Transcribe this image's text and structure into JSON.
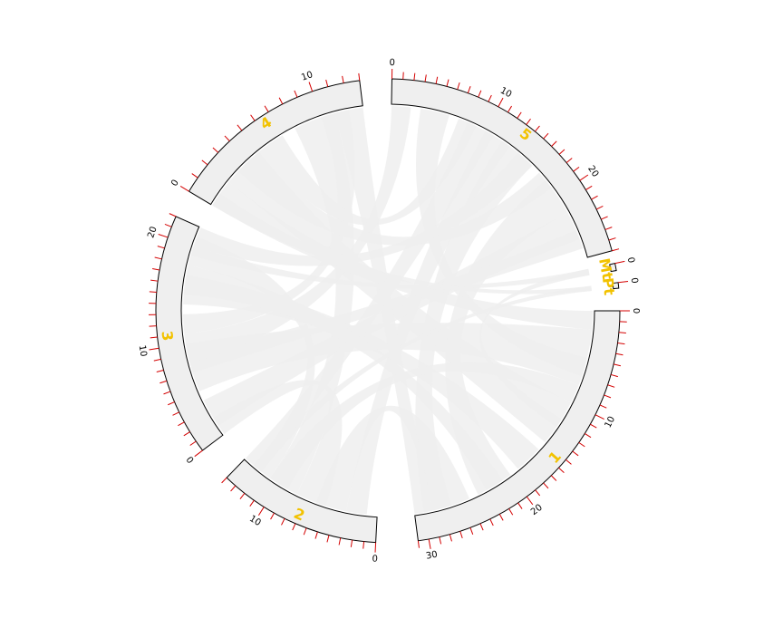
{
  "diagram": {
    "type": "chord",
    "colors": {
      "segment_fill": "#efefef",
      "segment_stroke": "#000000",
      "link_fill": "#eeeeee",
      "tick_major": "#d40000",
      "tick_minor": "#d40000",
      "label": "#f2c200"
    },
    "segments": [
      {
        "id": "1",
        "label": "1",
        "length": 31,
        "tick_labels": [
          "0",
          "10",
          "20",
          "30"
        ]
      },
      {
        "id": "2",
        "label": "2",
        "length": 14,
        "tick_labels": [
          "0",
          "10"
        ]
      },
      {
        "id": "3",
        "label": "3",
        "length": 22,
        "tick_labels": [
          "0",
          "10",
          "20"
        ]
      },
      {
        "id": "4",
        "label": "4",
        "length": 13,
        "tick_labels": [
          "0",
          "10"
        ]
      },
      {
        "id": "5",
        "label": "5",
        "length": 27,
        "tick_labels": [
          "0",
          "10",
          "20"
        ]
      },
      {
        "id": "Mt",
        "label": "Mt",
        "length": 0.4,
        "tick_labels": [
          "0"
        ]
      },
      {
        "id": "Pt",
        "label": "Pt",
        "length": 0.3,
        "tick_labels": [
          "0"
        ]
      }
    ]
  }
}
